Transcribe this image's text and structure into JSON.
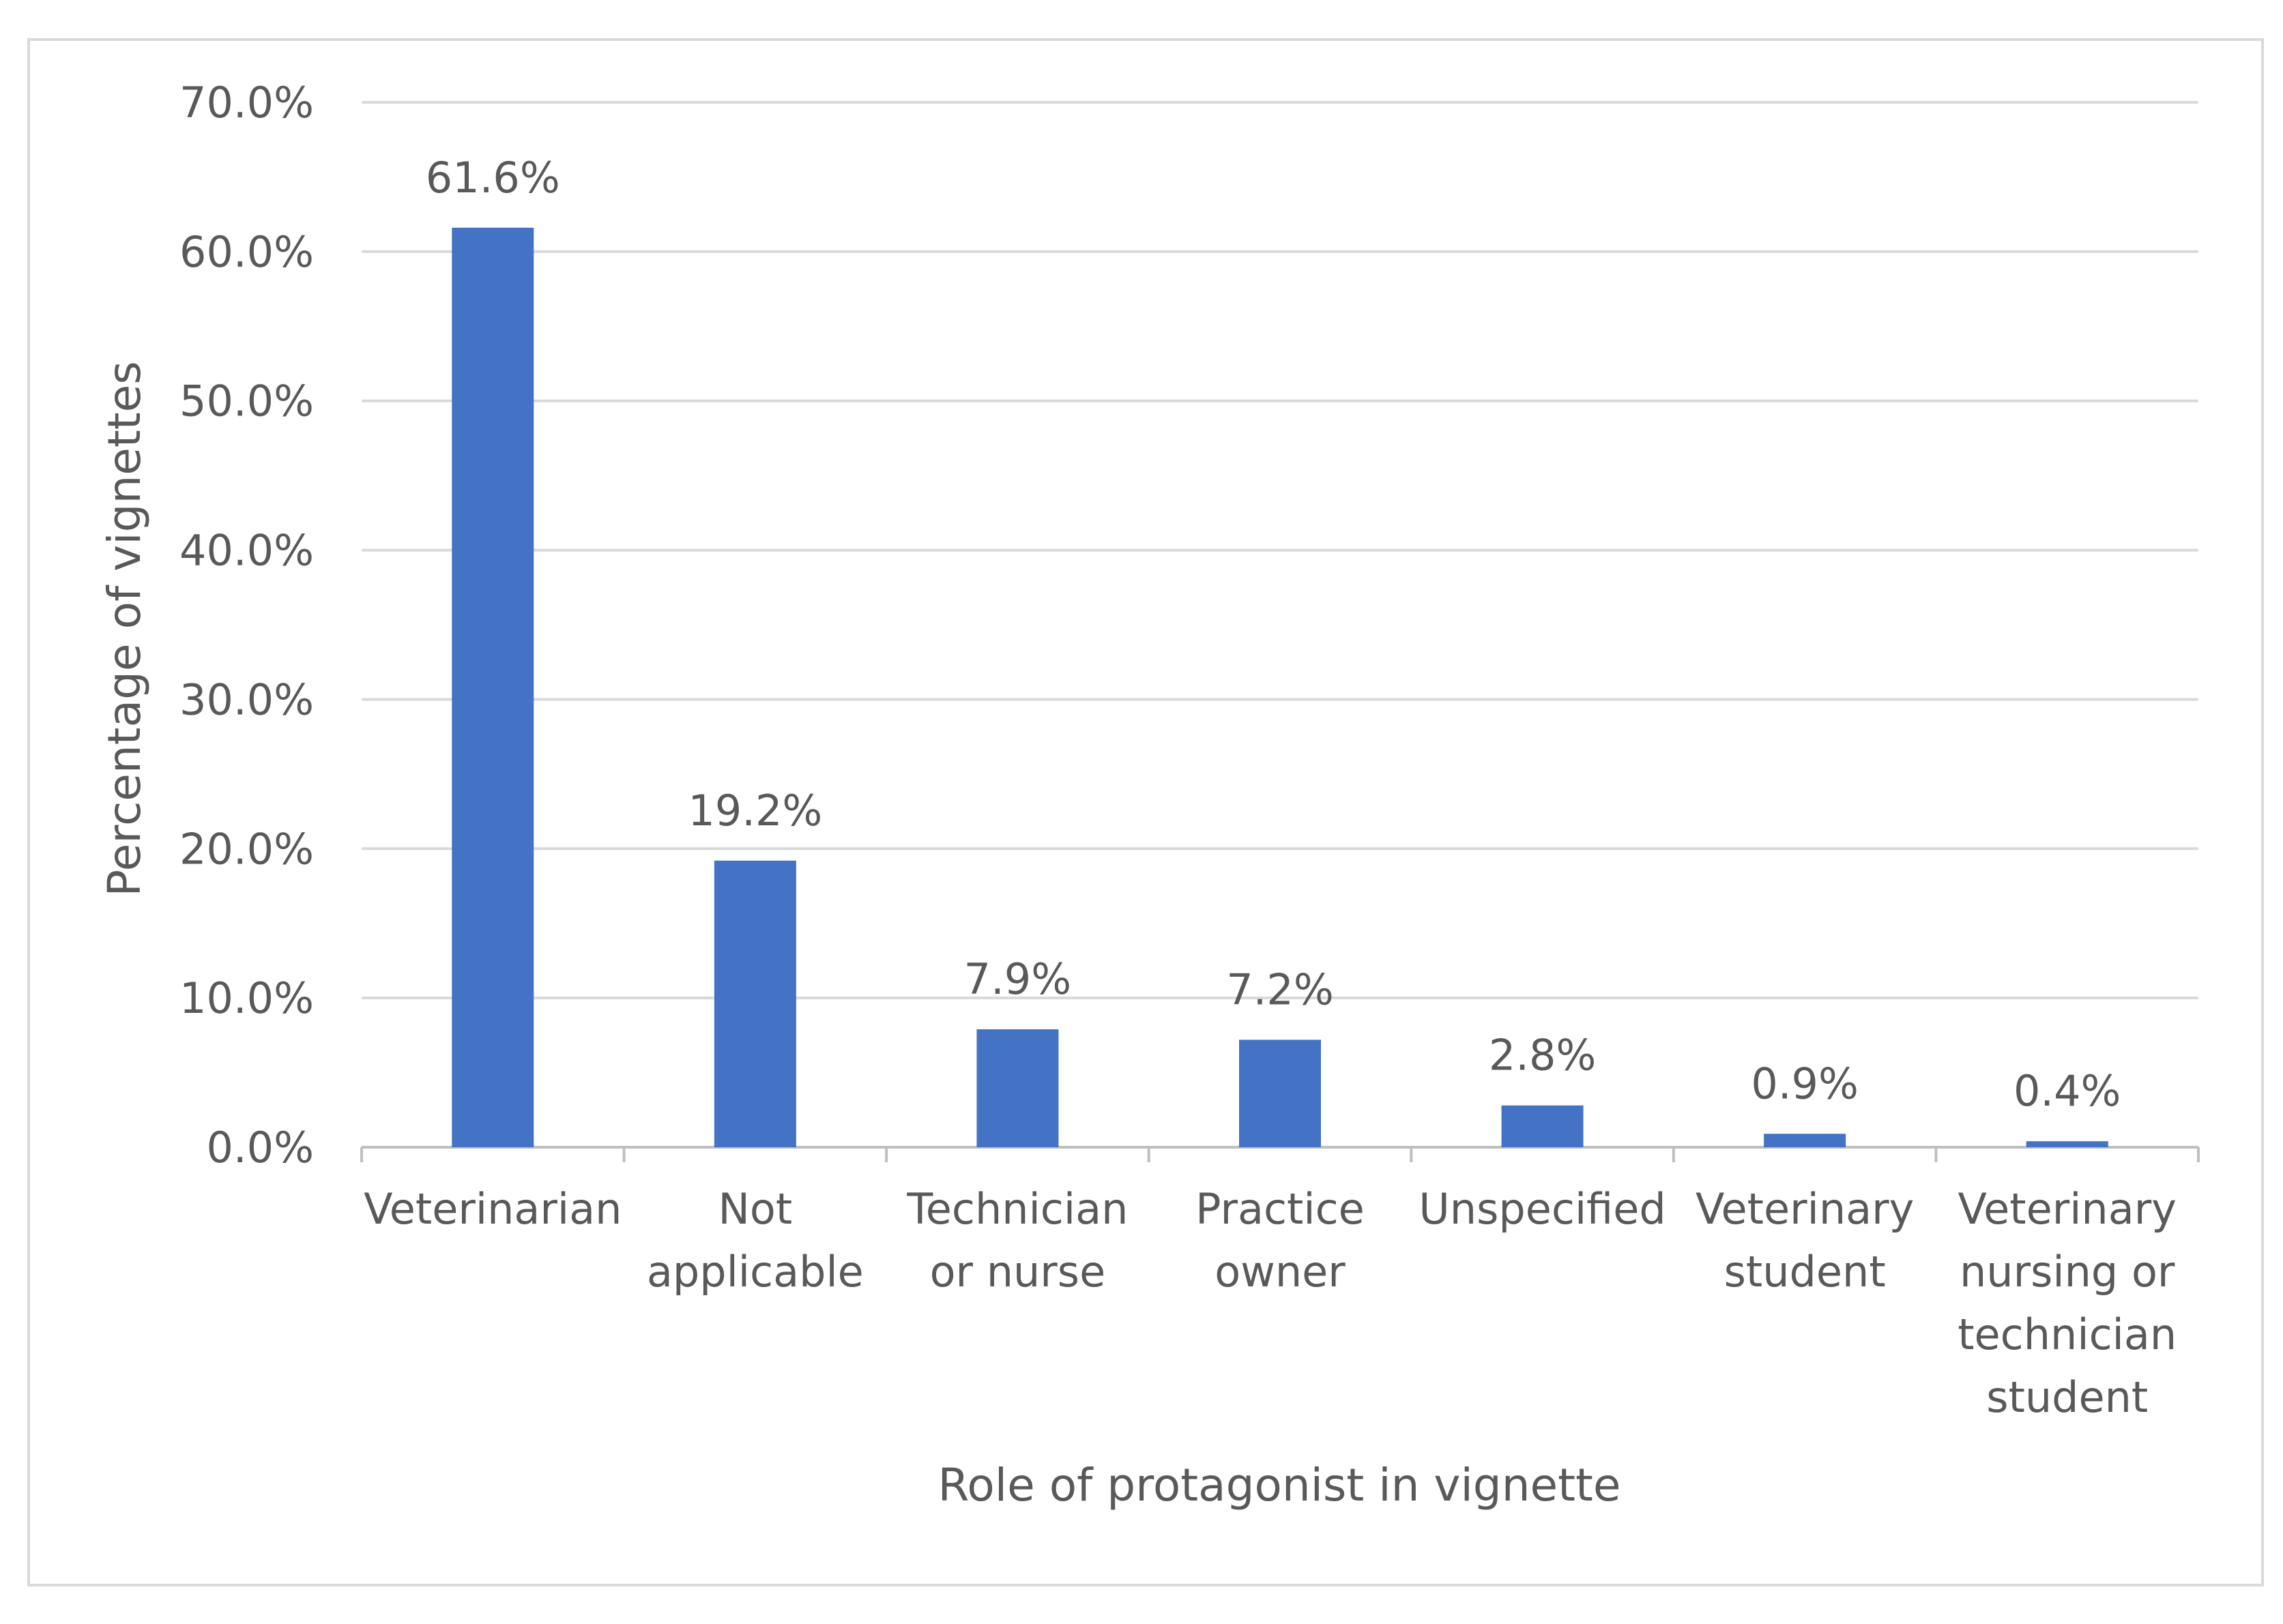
{
  "chart_data": {
    "type": "bar",
    "title": "",
    "xlabel": "Role of protagonist in vignette",
    "ylabel": "Percentage of vignettes",
    "ylim": [
      0,
      70
    ],
    "ytick_step": 10,
    "ytick_labels": [
      "0.0%",
      "10.0%",
      "20.0%",
      "30.0%",
      "40.0%",
      "50.0%",
      "60.0%",
      "70.0%"
    ],
    "grid": true,
    "legend": "none",
    "categories": [
      [
        "Veterinarian"
      ],
      [
        "Not",
        "applicable"
      ],
      [
        "Technician",
        "or nurse"
      ],
      [
        "Practice",
        "owner"
      ],
      [
        "Unspecified"
      ],
      [
        "Veterinary",
        "student"
      ],
      [
        "Veterinary",
        "nursing or",
        "technician",
        "student"
      ]
    ],
    "values": [
      61.6,
      19.2,
      7.9,
      7.2,
      2.8,
      0.9,
      0.4
    ],
    "data_labels": [
      "61.6%",
      "19.2%",
      "7.9%",
      "7.2%",
      "2.8%",
      "0.9%",
      "0.4%"
    ],
    "colors": {
      "bar": "#4472C4",
      "grid": "#D9D9D9",
      "axis": "#BFBFBF",
      "text": "#595959",
      "frame": "#D9D9D9"
    }
  }
}
